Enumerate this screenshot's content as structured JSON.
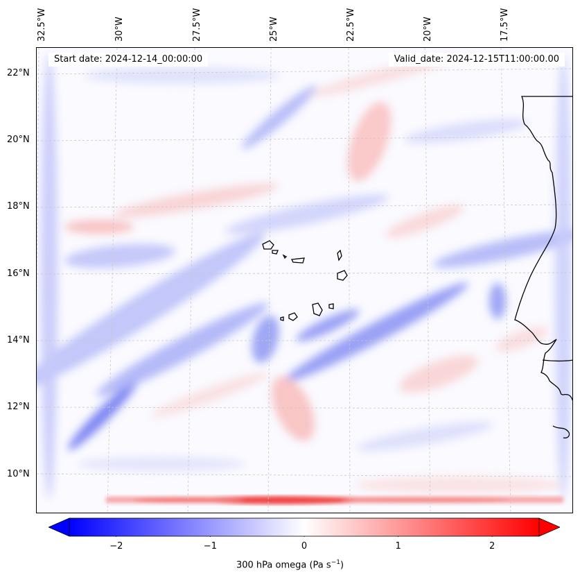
{
  "map": {
    "title_left": "Start date: 2024-12-14_00:00:00",
    "title_right": "Valid_date: 2024-12-15T11:00:00.00",
    "longitude_labels": [
      "32.5°W",
      "30°W",
      "27.5°W",
      "25°W",
      "22.5°W",
      "20°W",
      "17.5°W"
    ],
    "latitude_labels": [
      "22°N",
      "20°N",
      "18°N",
      "16°N",
      "14°N",
      "12°N",
      "10°N"
    ],
    "field": "300 hPa omega",
    "units": "Pa s",
    "units_exponent": "−1"
  },
  "colorbar": {
    "tick_labels": [
      "−2",
      "−1",
      "0",
      "1",
      "2"
    ],
    "tick_values": [
      -2,
      -1,
      0,
      1,
      2
    ],
    "range": [
      -2.5,
      2.5
    ],
    "extend": "both",
    "colors": {
      "min": "#0000ff",
      "mid": "#ffffff",
      "max": "#ff0000"
    }
  },
  "colors": {
    "coastline": "#000000",
    "grid": "#cccccc"
  }
}
